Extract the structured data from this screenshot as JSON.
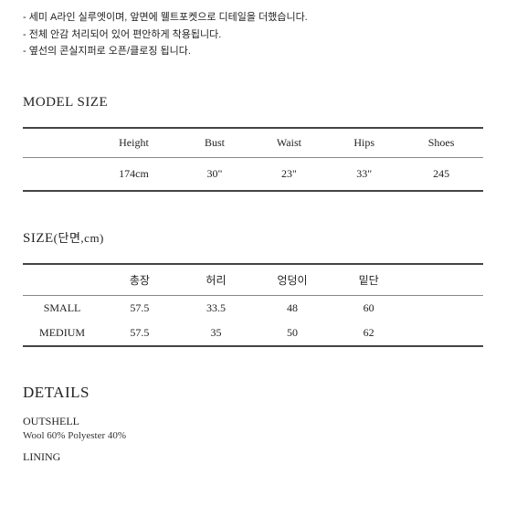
{
  "descriptions": [
    "- 세미 A라인 실루엣이며, 앞면에 웰트포켓으로 디테일을 더했습니다.",
    "- 전체 안감 처리되어 있어 편안하게 착용됩니다.",
    "- 옆선의 콘실지퍼로 오픈/클로징 됩니다."
  ],
  "model_size": {
    "title": "MODEL SIZE",
    "headers": [
      "",
      "Height",
      "Bust",
      "Waist",
      "Hips",
      "Shoes"
    ],
    "row": [
      "",
      "174cm",
      "30\"",
      "23\"",
      "33\"",
      "245"
    ]
  },
  "size": {
    "title": "SIZE",
    "title_paren": "(단면,cm)",
    "headers": [
      "",
      "총장",
      "허리",
      "엉덩이",
      "밑단",
      ""
    ],
    "rows": [
      [
        "SMALL",
        "57.5",
        "33.5",
        "48",
        "60",
        ""
      ],
      [
        "MEDIUM",
        "57.5",
        "35",
        "50",
        "62",
        ""
      ]
    ]
  },
  "details": {
    "title": "DETAILS",
    "outshell_label": "OUTSHELL",
    "outshell_value": "Wool 60% Polyester 40%",
    "lining_label": "LINING"
  }
}
